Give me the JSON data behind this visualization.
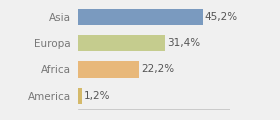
{
  "categories": [
    "America",
    "Africa",
    "Europa",
    "Asia"
  ],
  "values": [
    1.2,
    22.2,
    31.4,
    45.2
  ],
  "labels": [
    "1,2%",
    "22,2%",
    "31,4%",
    "45,2%"
  ],
  "bar_colors": [
    "#d4b96a",
    "#e8b87a",
    "#c5cc8e",
    "#7a9abf"
  ],
  "background_color": "#f0f0f0",
  "xlim": [
    0,
    55
  ],
  "bar_height": 0.62,
  "label_fontsize": 7.5,
  "tick_fontsize": 7.5
}
